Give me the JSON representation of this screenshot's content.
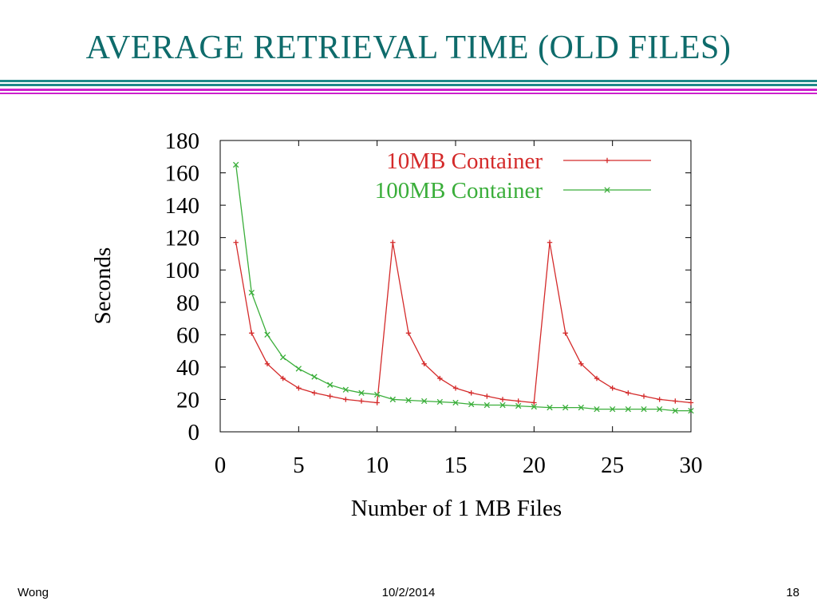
{
  "slide": {
    "title": "AVERAGE RETRIEVAL TIME (OLD FILES)",
    "footer_left": "Wong",
    "footer_date": "10/2/2014",
    "footer_page": "18"
  },
  "colors": {
    "title": "#0e6b6b",
    "rule_teal": "#1d8888",
    "rule_magenta": "#cc22cc",
    "series_10mb": "#d42a2a",
    "series_100mb": "#3aae3a"
  },
  "chart_data": {
    "type": "line",
    "title": "",
    "xlabel": "Number of 1 MB Files",
    "ylabel": "Seconds",
    "xlim": [
      0,
      30
    ],
    "ylim": [
      0,
      180
    ],
    "xticks": [
      0,
      5,
      10,
      15,
      20,
      25,
      30
    ],
    "yticks": [
      0,
      20,
      40,
      60,
      80,
      100,
      120,
      140,
      160,
      180
    ],
    "grid": false,
    "legend": "top-right",
    "series": [
      {
        "name": "10MB Container",
        "marker": "+",
        "color": "#d42a2a",
        "x": [
          1,
          2,
          3,
          4,
          5,
          6,
          7,
          8,
          9,
          10,
          11,
          12,
          13,
          14,
          15,
          16,
          17,
          18,
          19,
          20,
          21,
          22,
          23,
          24,
          25,
          26,
          27,
          28,
          29,
          30
        ],
        "y": [
          117,
          61,
          42,
          33,
          27,
          24,
          22,
          20,
          19,
          18,
          117,
          61,
          42,
          33,
          27,
          24,
          22,
          20,
          19,
          18,
          117,
          61,
          42,
          33,
          27,
          24,
          22,
          20,
          19,
          18
        ]
      },
      {
        "name": "100MB Container",
        "marker": "x",
        "color": "#3aae3a",
        "x": [
          1,
          2,
          3,
          4,
          5,
          6,
          7,
          8,
          9,
          10,
          11,
          12,
          13,
          14,
          15,
          16,
          17,
          18,
          19,
          20,
          21,
          22,
          23,
          24,
          25,
          26,
          27,
          28,
          29,
          30
        ],
        "y": [
          165,
          86,
          60,
          46,
          39,
          34,
          29,
          26,
          24,
          23,
          20,
          19.5,
          19,
          18.5,
          18,
          17,
          16.5,
          16.5,
          16,
          15.5,
          15,
          15,
          15,
          14,
          14,
          14,
          14,
          14,
          13,
          13
        ]
      }
    ]
  }
}
